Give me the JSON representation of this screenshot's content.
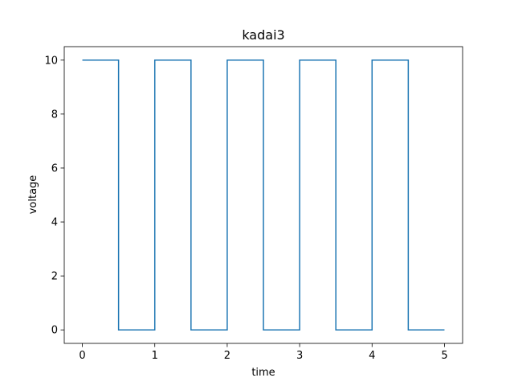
{
  "chart_data": {
    "type": "line",
    "title": "kadai3",
    "xlabel": "time",
    "ylabel": "voltage",
    "xlim": [
      -0.25,
      5.25
    ],
    "ylim": [
      -0.5,
      10.5
    ],
    "xticks": [
      "0",
      "1",
      "2",
      "3",
      "4",
      "5"
    ],
    "yticks": [
      "0",
      "2",
      "4",
      "6",
      "8",
      "10"
    ],
    "grid": false,
    "series": [
      {
        "color": "#1f77b4",
        "x": [
          0,
          0.5,
          0.5,
          1,
          1,
          1.5,
          1.5,
          2,
          2,
          2.5,
          2.5,
          3,
          3,
          3.5,
          3.5,
          4,
          4,
          4.5,
          4.5,
          5
        ],
        "y": [
          10,
          10,
          0,
          0,
          10,
          10,
          0,
          0,
          10,
          10,
          0,
          0,
          10,
          10,
          0,
          0,
          10,
          10,
          0,
          0
        ]
      }
    ]
  }
}
